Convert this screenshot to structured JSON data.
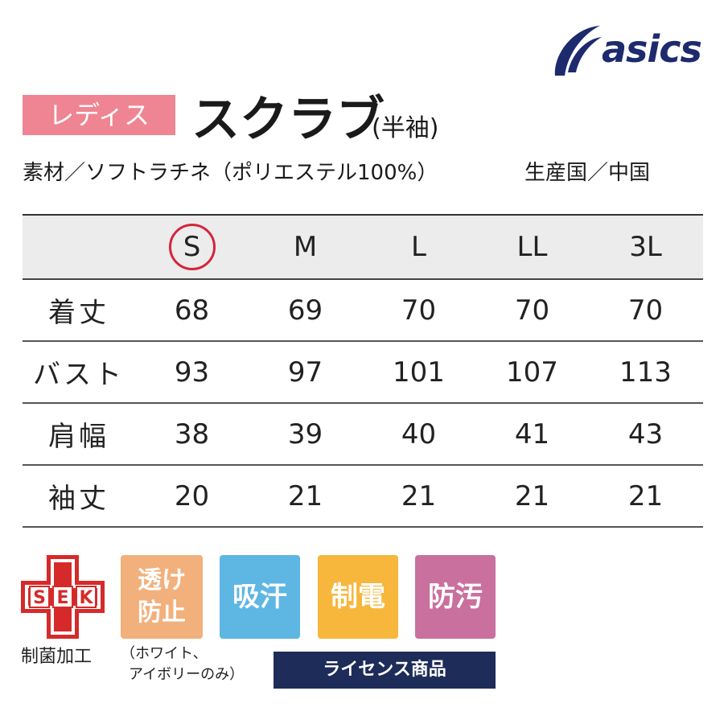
{
  "brand": {
    "name": "asics",
    "color": "#1d2a6e"
  },
  "header": {
    "badge": "レディス",
    "title": "スクラブ",
    "subtitle": "(半袖)",
    "material": "素材／ソフトラチネ（ポリエステル100%）",
    "origin": "生産国／中国"
  },
  "size_table": {
    "sizes": [
      "S",
      "M",
      "L",
      "LL",
      "3L"
    ],
    "highlighted_size": "S",
    "rows": [
      {
        "label": "着丈",
        "values": [
          "68",
          "69",
          "70",
          "70",
          "70"
        ]
      },
      {
        "label": "バスト",
        "values": [
          "93",
          "97",
          "101",
          "107",
          "113"
        ]
      },
      {
        "label": "肩幅",
        "values": [
          "38",
          "39",
          "40",
          "41",
          "43"
        ]
      },
      {
        "label": "袖丈",
        "values": [
          "20",
          "21",
          "21",
          "21",
          "21"
        ]
      }
    ]
  },
  "features": {
    "sek": {
      "letters": [
        "S",
        "E",
        "K"
      ],
      "caption": "制菌加工"
    },
    "badges": [
      {
        "line1": "透け",
        "line2": "防止",
        "color": "#f2b07c"
      },
      {
        "label": "吸汗",
        "color": "#5eb6e3"
      },
      {
        "label": "制電",
        "color": "#f6b73c"
      },
      {
        "label": "防汚",
        "color": "#c9709f"
      }
    ],
    "note_line1": "（ホワイト、",
    "note_line2": "アイボリーのみ）",
    "license": "ライセンス商品"
  }
}
